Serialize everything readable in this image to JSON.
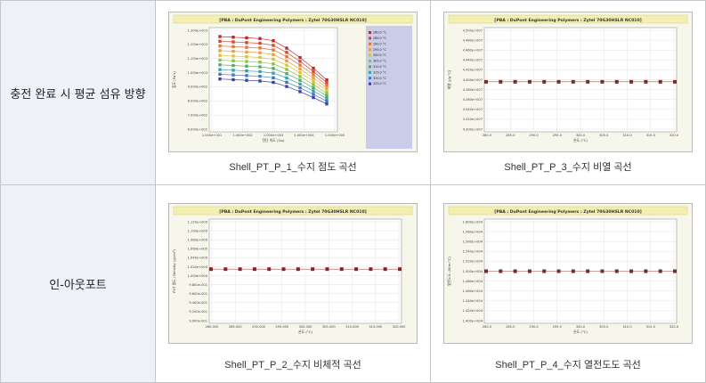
{
  "rows": [
    {
      "label": "충전 완료 시 평균 섬유 방향",
      "cells": [
        {
          "caption": "Shell_PT_P_1_수지 점도 곡선",
          "chart": {
            "title": "[PBA : DuPont Engineering Polymers : Zytel 70G30HSLR NC010]",
            "ylabel": "점도 (Pa·s)",
            "xlabel": "전단 속도 (1/s)",
            "yticks": [
              "1.300e+003",
              "1.200e+003",
              "1.100e+003",
              "1.000e+003",
              "9.000e+002",
              "8.000e+002",
              "7.000e+002",
              "6.000e+002"
            ],
            "xticks": [
              "1.000e+001",
              "1.000e+002",
              "1.000e+003",
              "1.000e+004",
              "1.000e+005"
            ],
            "legend": [
              "280.0 °C",
              "285.0 °C",
              "290.0 °C",
              "295.0 °C",
              "300.0 °C",
              "305.0 °C",
              "310.0 °C",
              "315.0 °C",
              "320.0 °C",
              "325.0 °C"
            ],
            "series_colors": [
              "#c0262a",
              "#d9442f",
              "#e6743a",
              "#e8a23d",
              "#d8c23a",
              "#8fbf46",
              "#4fae64",
              "#35a2a8",
              "#3f74c6",
              "#3c3fa8"
            ]
          }
        },
        {
          "caption": "Shell_PT_P_3_수지 비열 곡선",
          "chart": {
            "title": "[PBA : DuPont Engineering Polymers : Zytel 70G30HSLR NC010]",
            "ylabel": "비열 (J/g·°C)",
            "xlabel": "온도 (°C)",
            "yticks": [
              "4.500e+007",
              "4.480e+007",
              "4.460e+007",
              "4.440e+007",
              "4.420e+007",
              "4.400e+007",
              "4.380e+007",
              "4.360e+007",
              "4.340e+007",
              "4.320e+007",
              "4.300e+007"
            ],
            "xticks": [
              "280.0",
              "285.0",
              "290.0",
              "295.0",
              "300.0",
              "305.0",
              "310.0",
              "315.0",
              "320.0"
            ],
            "level": 0.52
          }
        }
      ]
    },
    {
      "label": "인-아웃포트",
      "cells": [
        {
          "caption": "Shell_PT_P_2_수지 비체적 곡선",
          "chart": {
            "title": "[PBA : DuPont Engineering Polymers : Zytel 70G30HSLR NC010]",
            "ylabel": "PVT 밀도 / Density (g/cm³)",
            "xlabel": "온도 (°C)",
            "yticks": [
              "1.120e+000",
              "1.100e+000",
              "1.080e+000",
              "1.060e+000",
              "1.040e+000",
              "1.020e+000",
              "1.000e+000",
              "9.800e-001",
              "9.600e-001",
              "9.400e-001",
              "9.200e-001",
              "9.000e-001"
            ],
            "xticks": [
              "280.000",
              "285.000",
              "290.000",
              "295.000",
              "300.000",
              "305.000",
              "310.000",
              "315.000",
              "320.000"
            ],
            "level": 0.48
          }
        },
        {
          "caption": "Shell_PT_P_4_수지 열전도도 곡선",
          "chart": {
            "title": "[PBA : DuPont Engineering Polymers : Zytel 70G30HSLR NC010]",
            "ylabel": "열전도도 (W/m·°C)",
            "xlabel": "온도 (°C)",
            "yticks": [
              "1.600e+004",
              "1.580e+004",
              "1.560e+004",
              "1.540e+004",
              "1.520e+004",
              "1.500e+004",
              "1.480e+004",
              "1.460e+004",
              "1.440e+004",
              "1.420e+004",
              "1.400e+004"
            ],
            "xticks": [
              "280.0",
              "285.0",
              "290.0",
              "295.0",
              "300.0",
              "305.0",
              "310.0",
              "315.0",
              "320.0"
            ],
            "level": 0.5
          }
        }
      ]
    }
  ]
}
